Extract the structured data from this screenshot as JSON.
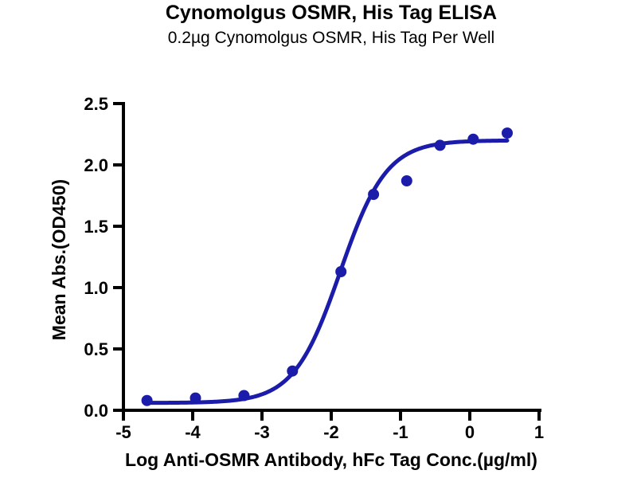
{
  "chart_data": {
    "type": "scatter",
    "title": "Cynomolgus OSMR, His Tag ELISA",
    "subtitle": "0.2µg Cynomolgus OSMR, His Tag Per Well",
    "xlabel": "Log Anti-OSMR Antibody, hFc Tag Conc.(µg/ml)",
    "ylabel": "Mean Abs.(OD450)",
    "xlim": [
      -5,
      1
    ],
    "ylim": [
      0,
      2.5
    ],
    "grid": false,
    "legend_position": "none",
    "x_ticks": [
      {
        "value": -5,
        "label": "-5"
      },
      {
        "value": -4,
        "label": "-4"
      },
      {
        "value": -3,
        "label": "-3"
      },
      {
        "value": -2,
        "label": "-2"
      },
      {
        "value": -1,
        "label": "-1"
      },
      {
        "value": 0,
        "label": "0"
      },
      {
        "value": 1,
        "label": "1"
      }
    ],
    "y_ticks": [
      {
        "value": 0.0,
        "label": "0.0"
      },
      {
        "value": 0.5,
        "label": "0.5"
      },
      {
        "value": 1.0,
        "label": "1.0"
      },
      {
        "value": 1.5,
        "label": "1.5"
      },
      {
        "value": 2.0,
        "label": "2.0"
      },
      {
        "value": 2.5,
        "label": "2.5"
      }
    ],
    "series": [
      {
        "name": "Anti-OSMR Antibody, hFc Tag",
        "marker": "circle",
        "x": [
          -4.66,
          -3.96,
          -3.26,
          -2.56,
          -1.86,
          -1.39,
          -0.91,
          -0.43,
          0.05,
          0.54
        ],
        "y": [
          0.08,
          0.1,
          0.12,
          0.32,
          1.13,
          1.76,
          1.87,
          2.16,
          2.21,
          2.26
        ]
      }
    ],
    "fit_curve": {
      "model": "4PL sigmoidal dose-response",
      "bottom": 0.06,
      "top": 2.2,
      "log_ec50": -1.87,
      "hill_slope": 1.3,
      "x_start": -4.66,
      "x_end": 0.54
    },
    "marker_color": "#1c1caa",
    "line_color": "#1c1caa",
    "axis_color": "#000000",
    "background_color": "#ffffff"
  }
}
